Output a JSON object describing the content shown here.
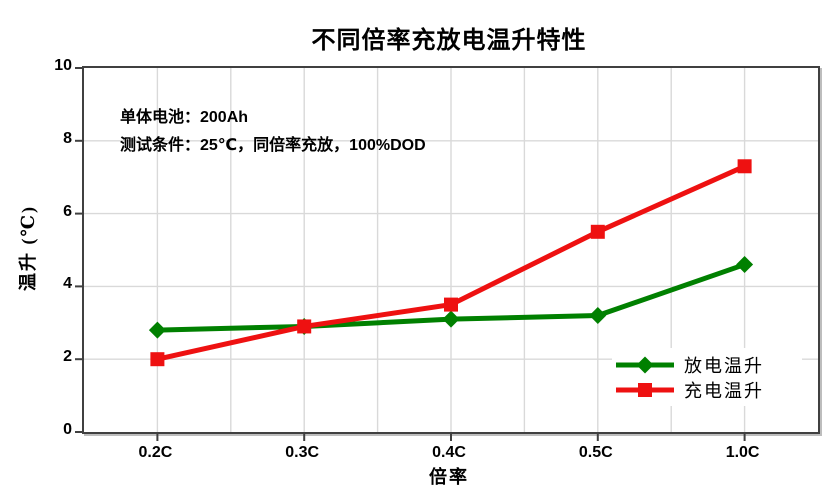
{
  "figure": {
    "annotation": {
      "line1": "单体电池：200Ah",
      "line2": "测试条件：25℃，同倍率充放，100%DOD"
    }
  },
  "chart_data": {
    "type": "line",
    "title": "不同倍率充放电温升特性",
    "xlabel": "倍率",
    "ylabel": "温升 (℃)",
    "categories": [
      "0.2C",
      "0.3C",
      "0.4C",
      "0.5C",
      "1.0C"
    ],
    "series": [
      {
        "name": "放电温升",
        "color": "#008000",
        "marker": "diamond",
        "values": [
          2.8,
          2.9,
          3.1,
          3.2,
          4.6
        ]
      },
      {
        "name": "充电温升",
        "color": "#ee1111",
        "marker": "square",
        "values": [
          2.0,
          2.9,
          3.5,
          5.5,
          7.3
        ]
      }
    ],
    "ylim": [
      0,
      10
    ],
    "yticks": [
      0,
      2,
      4,
      6,
      8,
      10
    ],
    "grid": true,
    "x_minor_gridlines": true,
    "legend_position": "bottom-right",
    "colors": {
      "grid": "#d9d9d9",
      "frame": "#404040",
      "text": "#000000"
    }
  }
}
